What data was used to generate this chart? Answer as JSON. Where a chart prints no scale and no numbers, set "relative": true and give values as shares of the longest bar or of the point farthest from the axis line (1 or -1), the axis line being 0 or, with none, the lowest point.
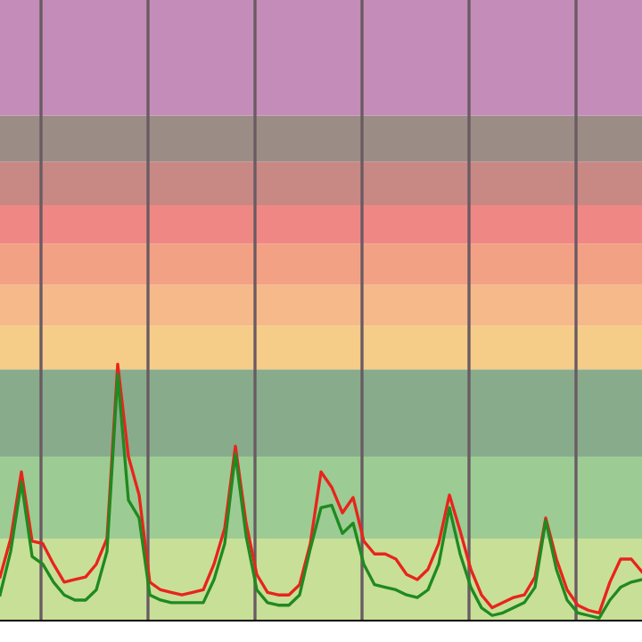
{
  "chart_data": {
    "type": "line",
    "relative": true,
    "grid": "x",
    "marker": "none",
    "line_style": "solid",
    "categories": [
      null,
      null,
      null,
      null,
      null,
      null,
      null,
      null,
      null,
      null,
      null,
      null,
      null,
      null,
      null,
      null,
      null,
      null,
      null,
      null,
      null,
      null,
      null,
      null,
      null,
      null,
      null,
      null,
      null,
      null,
      null,
      null,
      null,
      null,
      null,
      null,
      null,
      null,
      null,
      null,
      null,
      null,
      null,
      null,
      null,
      null,
      null,
      null,
      null,
      null,
      null,
      null,
      null,
      null,
      null,
      null,
      null,
      null,
      null,
      null,
      null
    ],
    "series": [
      {
        "color": "#e8241c",
        "values": [
          0.17,
          0.32,
          0.58,
          0.31,
          0.3,
          0.22,
          0.15,
          0.16,
          0.17,
          0.22,
          0.32,
          1.0,
          0.64,
          0.49,
          0.15,
          0.12,
          0.11,
          0.1,
          0.11,
          0.12,
          0.22,
          0.36,
          0.68,
          0.38,
          0.18,
          0.11,
          0.1,
          0.1,
          0.14,
          0.3,
          0.58,
          0.52,
          0.42,
          0.48,
          0.31,
          0.26,
          0.26,
          0.24,
          0.18,
          0.16,
          0.2,
          0.3,
          0.49,
          0.35,
          0.2,
          0.1,
          0.05,
          0.07,
          0.09,
          0.1,
          0.17,
          0.4,
          0.24,
          0.12,
          0.06,
          0.04,
          0.03,
          0.15,
          0.24,
          0.24,
          0.19
        ]
      },
      {
        "color": "#1f8a1f",
        "values": [
          0.1,
          0.27,
          0.54,
          0.25,
          0.22,
          0.15,
          0.1,
          0.08,
          0.08,
          0.12,
          0.27,
          0.96,
          0.47,
          0.4,
          0.1,
          0.08,
          0.07,
          0.07,
          0.07,
          0.07,
          0.16,
          0.3,
          0.65,
          0.33,
          0.12,
          0.07,
          0.06,
          0.06,
          0.1,
          0.28,
          0.44,
          0.45,
          0.34,
          0.38,
          0.22,
          0.14,
          0.13,
          0.12,
          0.1,
          0.09,
          0.12,
          0.22,
          0.44,
          0.26,
          0.13,
          0.05,
          0.02,
          0.03,
          0.05,
          0.07,
          0.13,
          0.39,
          0.2,
          0.08,
          0.03,
          0.02,
          0.01,
          0.08,
          0.13,
          0.15,
          0.16
        ]
      }
    ],
    "bands": [
      {
        "axis": "y",
        "from": 0,
        "to": 0.32,
        "color": "#c8df98"
      },
      {
        "axis": "y",
        "from": 0.32,
        "to": 0.64,
        "color": "#9ccc94"
      },
      {
        "axis": "y",
        "from": 0.64,
        "to": 0.98,
        "color": "#88ab8c"
      },
      {
        "axis": "y",
        "from": 0.98,
        "to": 1.15,
        "color": "#f5cc88"
      },
      {
        "axis": "y",
        "from": 1.15,
        "to": 1.31,
        "color": "#f5b98a"
      },
      {
        "axis": "y",
        "from": 1.31,
        "to": 1.47,
        "color": "#f3a184"
      },
      {
        "axis": "y",
        "from": 1.47,
        "to": 1.62,
        "color": "#ef8884"
      },
      {
        "axis": "y",
        "from": 1.62,
        "to": 1.79,
        "color": "#c88884"
      },
      {
        "axis": "y",
        "from": 1.79,
        "to": 1.97,
        "color": "#9c8c86"
      },
      {
        "axis": "y",
        "from": 1.97,
        "to": 2.42,
        "color": "#c48cb8"
      }
    ]
  }
}
